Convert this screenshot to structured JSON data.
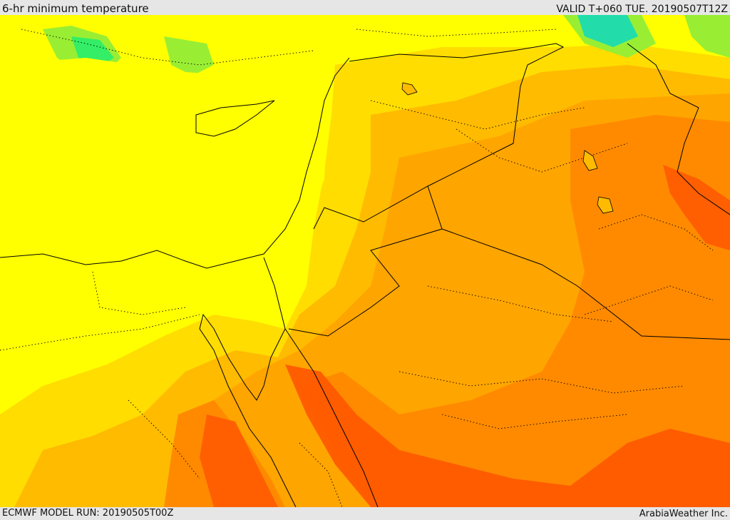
{
  "header": {
    "title": "6-hr minimum temperature",
    "valid": "VALID T+060 TUE. 20190507T12Z"
  },
  "footer": {
    "model_run": "ECMWF MODEL RUN: 20190505T00Z",
    "credit": "ArabiaWeather Inc."
  },
  "colors": {
    "green": "#33ee66",
    "teal": "#22ddaa",
    "light_green": "#99ee33",
    "yellow": "#ffff00",
    "gold": "#ffdd00",
    "amber": "#ffbb00",
    "orange": "#ffa500",
    "dark_orange": "#ff8a00",
    "red_orange": "#ff5a00",
    "border": "#000000"
  }
}
